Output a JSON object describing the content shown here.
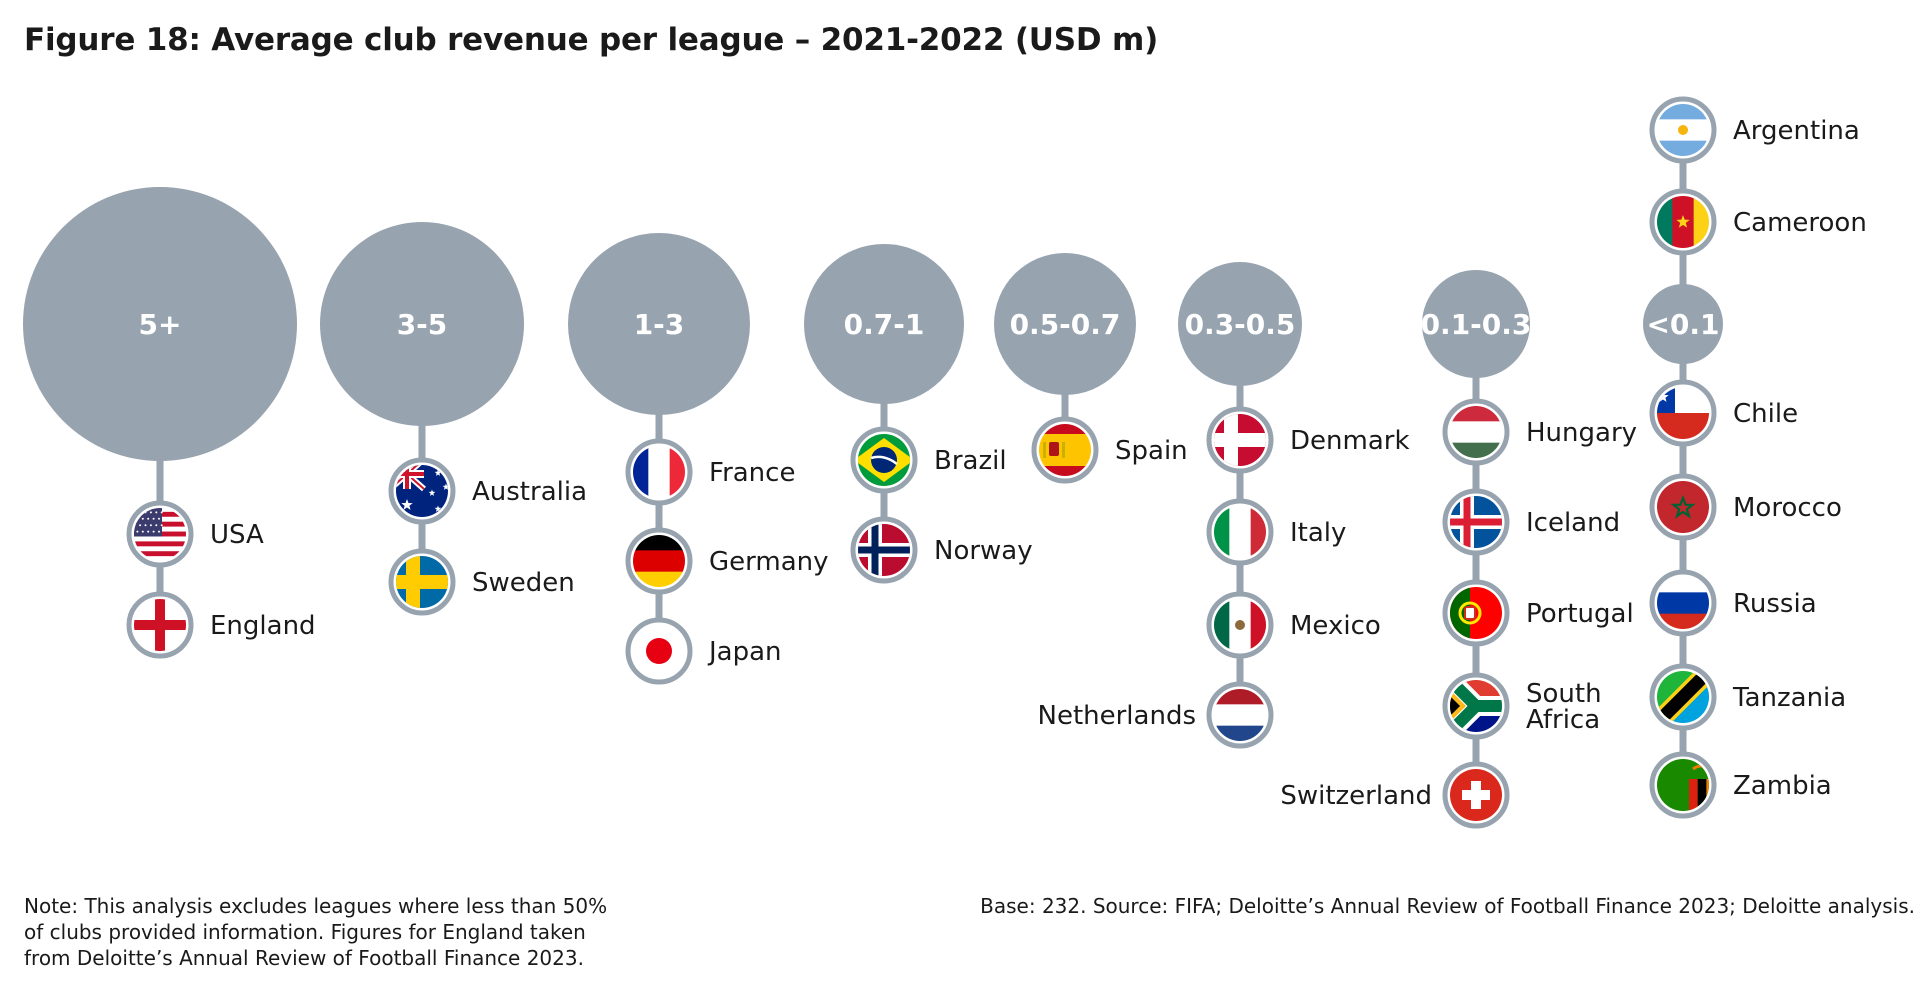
{
  "title": "Figure 18: Average club revenue per league – 2021-2022 (USD m)",
  "note": "Note: This analysis excludes leagues where less than 50% of clubs provided information. Figures for England taken from Deloitte’s Annual Review of Football Finance 2023.",
  "source": "Base: 232. Source: FIFA; Deloitte’s Annual Review of Football Finance 2023; Deloitte analysis.",
  "colors": {
    "bubble": "#97a3ae",
    "connector": "#97a3ae",
    "text": "#1a1a1a"
  },
  "groups": [
    {
      "range": "5+",
      "countries": [
        {
          "name": "USA",
          "flag": "usa"
        },
        {
          "name": "England",
          "flag": "england"
        }
      ]
    },
    {
      "range": "3-5",
      "countries": [
        {
          "name": "Australia",
          "flag": "australia"
        },
        {
          "name": "Sweden",
          "flag": "sweden"
        }
      ]
    },
    {
      "range": "1-3",
      "countries": [
        {
          "name": "France",
          "flag": "france"
        },
        {
          "name": "Germany",
          "flag": "germany"
        },
        {
          "name": "Japan",
          "flag": "japan"
        }
      ]
    },
    {
      "range": "0.7-1",
      "countries": [
        {
          "name": "Brazil",
          "flag": "brazil"
        },
        {
          "name": "Norway",
          "flag": "norway"
        }
      ]
    },
    {
      "range": "0.5-0.7",
      "countries": [
        {
          "name": "Spain",
          "flag": "spain"
        }
      ]
    },
    {
      "range": "0.3-0.5",
      "countries": [
        {
          "name": "Denmark",
          "flag": "denmark"
        },
        {
          "name": "Italy",
          "flag": "italy"
        },
        {
          "name": "Mexico",
          "flag": "mexico"
        },
        {
          "name": "Netherlands",
          "flag": "netherlands"
        }
      ]
    },
    {
      "range": "0.1-0.3",
      "countries": [
        {
          "name": "Hungary",
          "flag": "hungary"
        },
        {
          "name": "Iceland",
          "flag": "iceland"
        },
        {
          "name": "Portugal",
          "flag": "portugal"
        },
        {
          "name": "South Africa",
          "flag": "south-africa"
        },
        {
          "name": "Switzerland",
          "flag": "switzerland"
        }
      ]
    },
    {
      "range": "<0.1",
      "countries": [
        {
          "name": "Argentina",
          "flag": "argentina"
        },
        {
          "name": "Cameroon",
          "flag": "cameroon"
        },
        {
          "name": "Chile",
          "flag": "chile"
        },
        {
          "name": "Morocco",
          "flag": "morocco"
        },
        {
          "name": "Russia",
          "flag": "russia"
        },
        {
          "name": "Tanzania",
          "flag": "tanzania"
        },
        {
          "name": "Zambia",
          "flag": "zambia"
        }
      ]
    }
  ]
}
